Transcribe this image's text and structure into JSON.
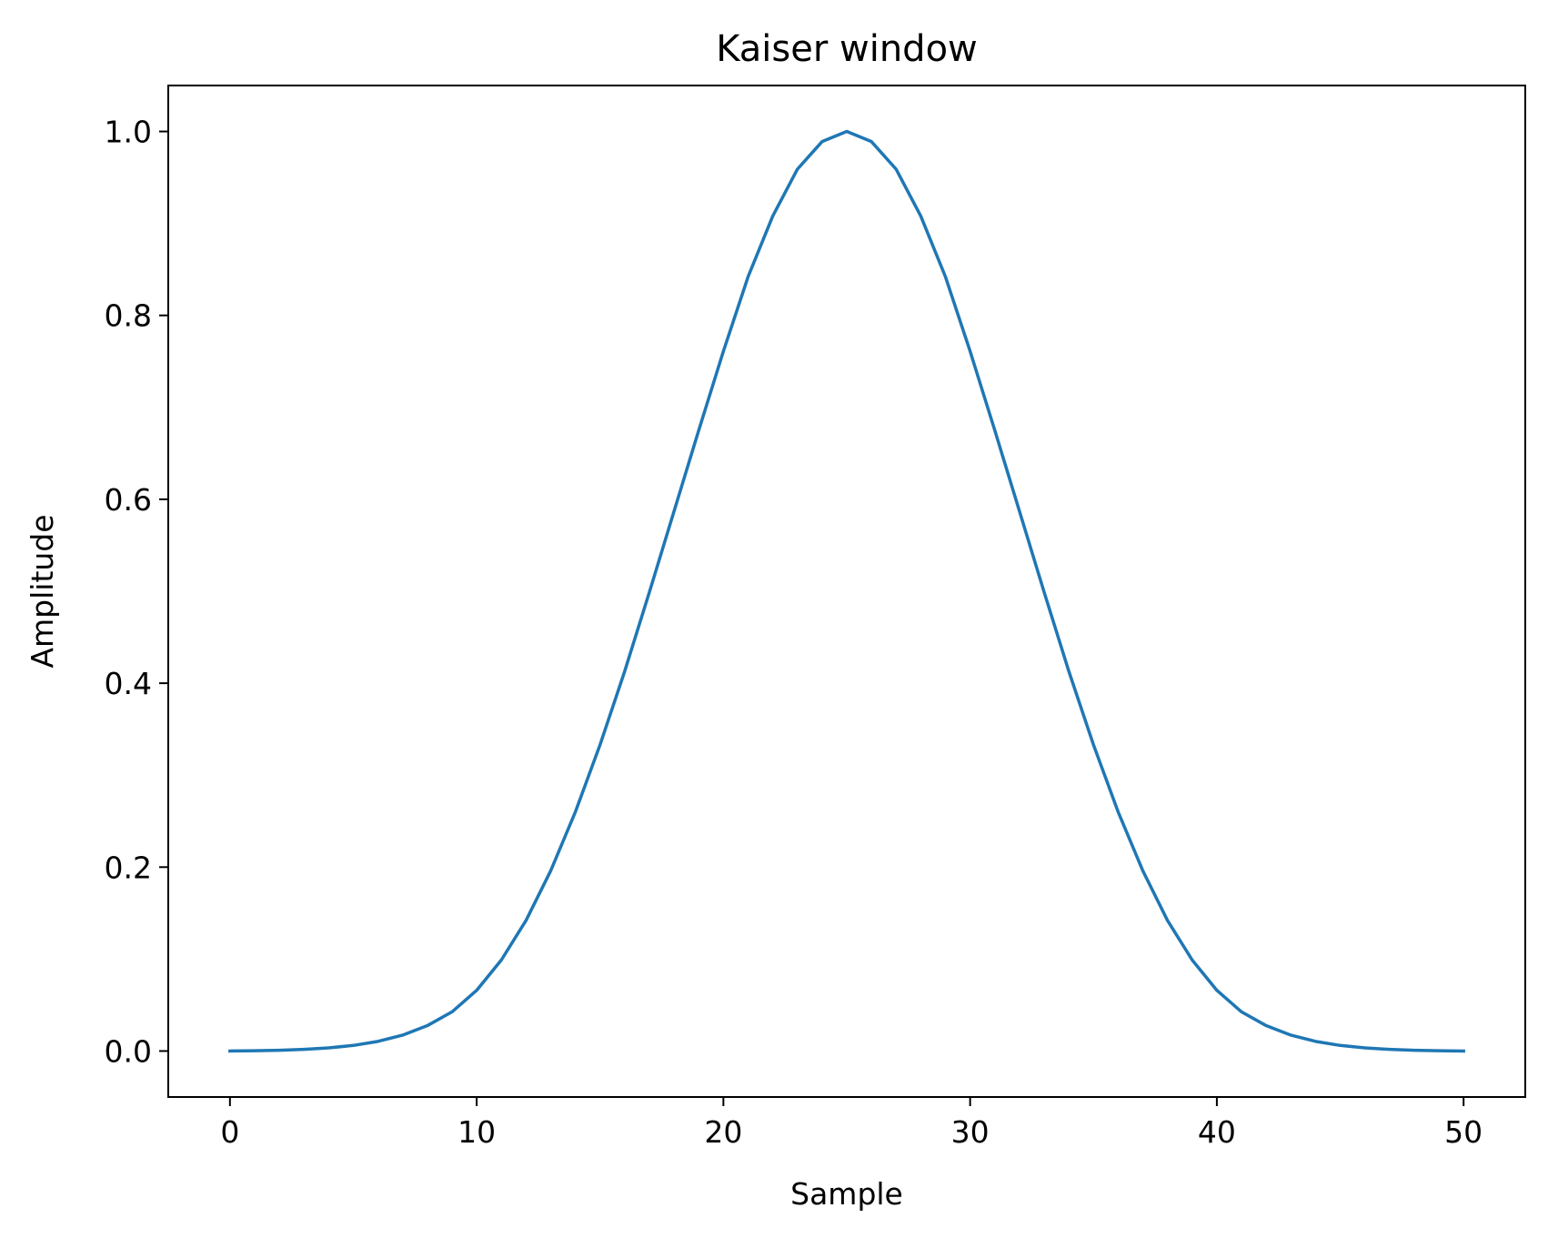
{
  "chart_data": {
    "type": "line",
    "title": "Kaiser window",
    "xlabel": "Sample",
    "ylabel": "Amplitude",
    "xlim": [
      -2.5,
      52.5
    ],
    "ylim": [
      -0.05,
      1.05
    ],
    "xticks": [
      0,
      10,
      20,
      30,
      40,
      50
    ],
    "xtick_labels": [
      "0",
      "10",
      "20",
      "30",
      "40",
      "50"
    ],
    "yticks": [
      0.0,
      0.2,
      0.4,
      0.6,
      0.8,
      1.0
    ],
    "ytick_labels": [
      "0.0",
      "0.2",
      "0.4",
      "0.6",
      "0.8",
      "1.0"
    ],
    "grid": false,
    "series": [
      {
        "color": "#1f77b4",
        "x": [
          0,
          1,
          2,
          3,
          4,
          5,
          6,
          7,
          8,
          9,
          10,
          11,
          12,
          13,
          14,
          15,
          16,
          17,
          18,
          19,
          20,
          21,
          22,
          23,
          24,
          25,
          26,
          27,
          28,
          29,
          30,
          31,
          32,
          33,
          34,
          35,
          36,
          37,
          38,
          39,
          40,
          41,
          42,
          43,
          44,
          45,
          46,
          47,
          48,
          49,
          50
        ],
        "y": [
          0.0,
          0.0003,
          0.0008,
          0.0018,
          0.0034,
          0.0061,
          0.0105,
          0.0173,
          0.0276,
          0.0426,
          0.066,
          0.099,
          0.142,
          0.196,
          0.26,
          0.333,
          0.413,
          0.499,
          0.587,
          0.675,
          0.761,
          0.842,
          0.908,
          0.959,
          0.989,
          1.0,
          0.989,
          0.959,
          0.908,
          0.842,
          0.761,
          0.675,
          0.587,
          0.499,
          0.413,
          0.333,
          0.26,
          0.196,
          0.142,
          0.099,
          0.066,
          0.0426,
          0.0276,
          0.0173,
          0.0105,
          0.0061,
          0.0034,
          0.0018,
          0.0008,
          0.0003,
          0.0
        ]
      }
    ]
  }
}
